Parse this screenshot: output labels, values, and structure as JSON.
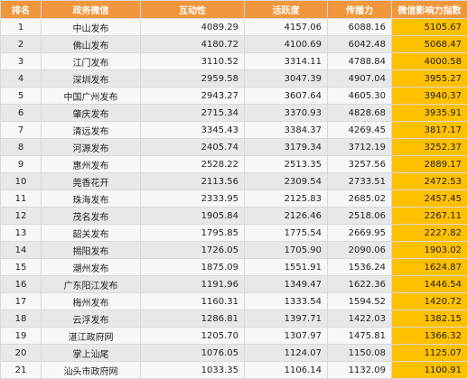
{
  "table": {
    "headers": [
      "排名",
      "政务微信",
      "互动性",
      "活跃度",
      "传播力",
      "微信影响力指数"
    ],
    "rows": [
      [
        "1",
        "中山发布",
        "4089.29",
        "4157.06",
        "6088.16",
        "5105.67"
      ],
      [
        "2",
        "佛山发布",
        "4180.72",
        "4100.69",
        "6042.48",
        "5068.47"
      ],
      [
        "3",
        "江门发布",
        "3110.52",
        "3314.11",
        "4788.84",
        "4000.58"
      ],
      [
        "4",
        "深圳发布",
        "2959.58",
        "3047.39",
        "4907.04",
        "3955.27"
      ],
      [
        "5",
        "中国广州发布",
        "2943.27",
        "3607.64",
        "4605.30",
        "3940.37"
      ],
      [
        "6",
        "肇庆发布",
        "2715.34",
        "3370.93",
        "4828.68",
        "3935.91"
      ],
      [
        "7",
        "清远发布",
        "3345.43",
        "3384.37",
        "4269.45",
        "3817.17"
      ],
      [
        "8",
        "河源发布",
        "2405.74",
        "3179.34",
        "3712.19",
        "3252.37"
      ],
      [
        "9",
        "惠州发布",
        "2528.22",
        "2513.35",
        "3257.56",
        "2889.17"
      ],
      [
        "10",
        "莞香花开",
        "2113.56",
        "2309.54",
        "2733.51",
        "2472.53"
      ],
      [
        "11",
        "珠海发布",
        "2333.95",
        "2125.83",
        "2685.02",
        "2457.45"
      ],
      [
        "12",
        "茂名发布",
        "1905.84",
        "2126.46",
        "2518.06",
        "2267.11"
      ],
      [
        "13",
        "韶关发布",
        "1795.85",
        "1775.54",
        "2669.95",
        "2227.82"
      ],
      [
        "14",
        "揭阳发布",
        "1726.05",
        "1705.90",
        "2090.06",
        "1903.02"
      ],
      [
        "15",
        "潮州发布",
        "1875.09",
        "1551.91",
        "1536.24",
        "1624.87"
      ],
      [
        "16",
        "广东阳江发布",
        "1191.96",
        "1349.47",
        "1622.36",
        "1446.54"
      ],
      [
        "17",
        "梅州发布",
        "1160.31",
        "1333.54",
        "1594.52",
        "1420.72"
      ],
      [
        "18",
        "云浮发布",
        "1286.81",
        "1397.71",
        "1422.03",
        "1382.15"
      ],
      [
        "19",
        "湛江政府网",
        "1205.70",
        "1307.97",
        "1475.81",
        "1366.32"
      ],
      [
        "20",
        "掌上汕尾",
        "1076.05",
        "1124.07",
        "1150.08",
        "1125.07"
      ],
      [
        "21",
        "汕头市政府网",
        "1033.35",
        "1106.14",
        "1132.09",
        "1100.91"
      ]
    ]
  },
  "colors": {
    "header_bg": "#f0973d",
    "header_text": "#ffffff",
    "index_highlight": "#ffc000",
    "row_light": "#f7f7f7",
    "row_dark": "#e8e8e8"
  }
}
